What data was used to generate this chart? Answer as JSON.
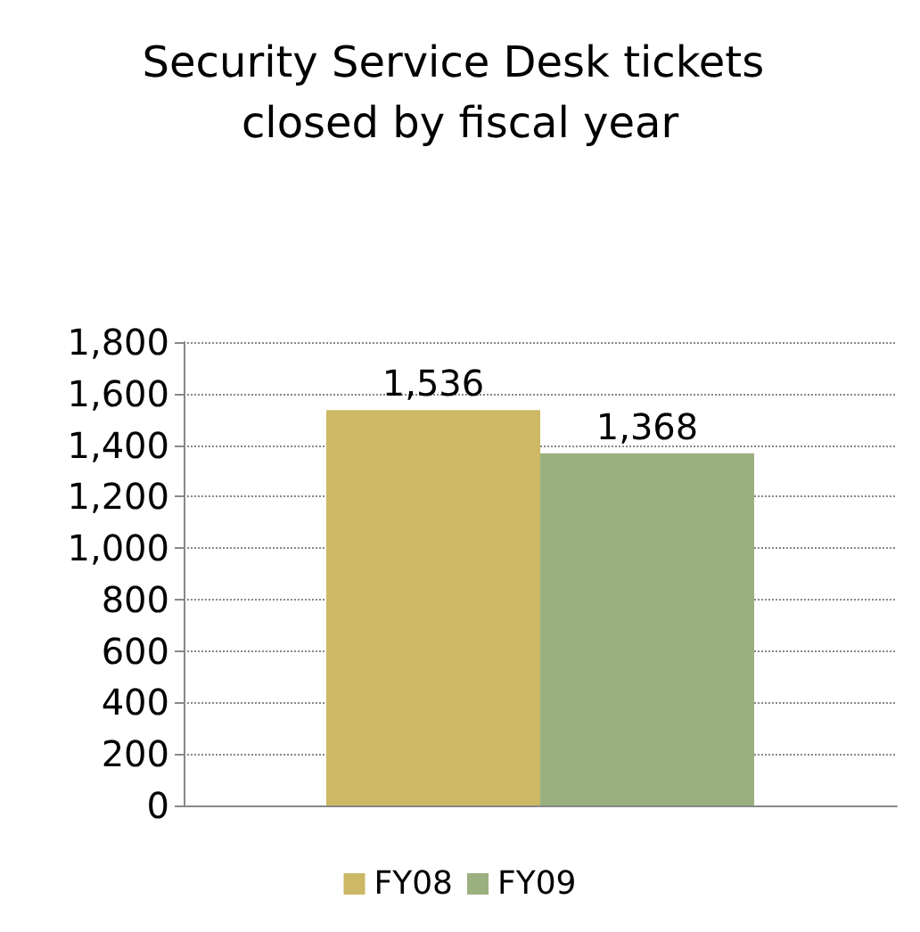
{
  "chart_data": {
    "type": "bar",
    "title": "Security Service Desk tickets closed by fiscal year",
    "categories": [
      null
    ],
    "series": [
      {
        "name": "FY08",
        "color": "#cdb865",
        "values": [
          1536
        ],
        "value_labels": [
          "1,536"
        ]
      },
      {
        "name": "FY09",
        "color": "#9bb07f",
        "values": [
          1368
        ],
        "value_labels": [
          "1,368"
        ]
      }
    ],
    "ylim": [
      0,
      1800
    ],
    "yticks": [
      0,
      200,
      400,
      600,
      800,
      {
        "value": 1000,
        "label": "1,000"
      },
      {
        "value": 1200,
        "label": "1,200"
      },
      {
        "value": 1400,
        "label": "1,400"
      },
      {
        "value": 1600,
        "label": "1,600"
      },
      {
        "value": 1800,
        "label": "1,800"
      }
    ],
    "grid": "y",
    "legend": "bottom"
  }
}
